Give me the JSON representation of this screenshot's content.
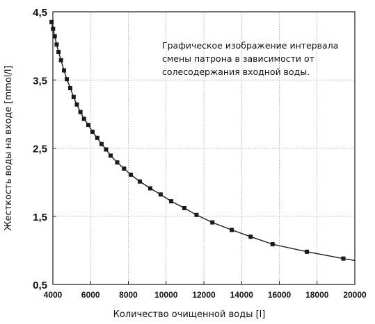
{
  "chart_data": {
    "type": "line",
    "annotation": [
      "Графическое изображение интервала",
      "смены патрона в зависимости от",
      "солесодержания входной воды."
    ],
    "xlabel": "Количество очищенной воды [l]",
    "ylabel": "Жесткость воды на входе [mmol/l]",
    "xlim": [
      4000,
      20000
    ],
    "ylim": [
      0.5,
      4.5
    ],
    "x_ticks": [
      4000,
      6000,
      8000,
      10000,
      12000,
      14000,
      16000,
      18000,
      20000
    ],
    "x_tick_labels": [
      "4000",
      "6000",
      "8000",
      "10000",
      "12000",
      "14000",
      "16000",
      "18000",
      "20000"
    ],
    "y_ticks": [
      0.5,
      1.5,
      2.5,
      3.5,
      4.5
    ],
    "y_tick_labels": [
      "0,5",
      "1,5",
      "2,5",
      "3,5",
      "4,5"
    ],
    "grid": true,
    "legend": "none",
    "line_color": "#1a1a1a",
    "marker_color": "#1a1a1a",
    "grid_color": "#9a9a9a",
    "series": [
      {
        "marker": "square",
        "points": [
          [
            3930,
            4.35
          ],
          [
            4010,
            4.25
          ],
          [
            4100,
            4.14
          ],
          [
            4200,
            4.02
          ],
          [
            4300,
            3.91
          ],
          [
            4430,
            3.79
          ],
          [
            4590,
            3.64
          ],
          [
            4740,
            3.51
          ],
          [
            4920,
            3.38
          ],
          [
            5100,
            3.25
          ],
          [
            5270,
            3.14
          ],
          [
            5460,
            3.03
          ],
          [
            5650,
            2.93
          ],
          [
            5880,
            2.84
          ],
          [
            6100,
            2.74
          ],
          [
            6350,
            2.65
          ],
          [
            6580,
            2.56
          ],
          [
            6820,
            2.48
          ],
          [
            7060,
            2.39
          ],
          [
            7410,
            2.29
          ],
          [
            7770,
            2.2
          ],
          [
            8130,
            2.11
          ],
          [
            8610,
            2.01
          ],
          [
            9160,
            1.91
          ],
          [
            9710,
            1.82
          ],
          [
            10270,
            1.72
          ],
          [
            10970,
            1.62
          ],
          [
            11610,
            1.52
          ],
          [
            12450,
            1.41
          ],
          [
            13480,
            1.3
          ],
          [
            14480,
            1.2
          ],
          [
            15640,
            1.09
          ],
          [
            17460,
            0.98
          ],
          [
            19390,
            0.88
          ]
        ]
      }
    ]
  }
}
